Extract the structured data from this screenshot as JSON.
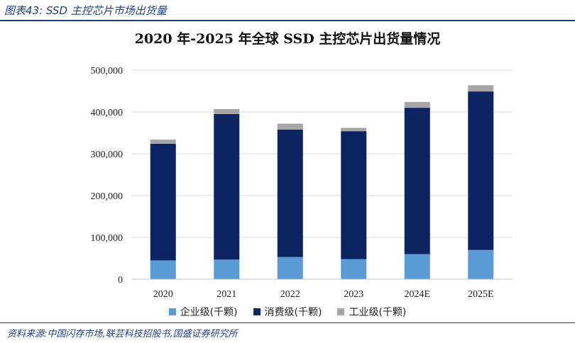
{
  "figure_label": "图表43:  SSD 主控芯片市场出货量",
  "source_note": "资料来源:中国闪存市场,联芸科技招股书,国盛证券研究所",
  "colors": {
    "accent": "#1f3c88",
    "enterprise": "#5b9bd5",
    "consumer": "#0c2461",
    "industrial": "#a6a6a6",
    "grid": "#d9d9d9"
  },
  "chart_data": {
    "type": "bar",
    "stacked": true,
    "title": "2020 年-2025 年全球 SSD 主控芯片出货量情况",
    "xlabel": "",
    "ylabel": "",
    "categories": [
      "2020",
      "2021",
      "2022",
      "2023",
      "2024E",
      "2025E"
    ],
    "ylim": [
      0,
      500000
    ],
    "yticks": [
      0,
      100000,
      200000,
      300000,
      400000,
      500000
    ],
    "ytick_labels": [
      "0",
      "100,000",
      "200,000",
      "300,000",
      "400,000",
      "500,000"
    ],
    "grid": true,
    "legend_position": "bottom",
    "series": [
      {
        "name": "企业级(千颗)",
        "color": "#5b9bd5",
        "values": [
          45000,
          47000,
          53000,
          48000,
          60000,
          70000
        ]
      },
      {
        "name": "消费级(千颗)",
        "color": "#0c2461",
        "values": [
          279000,
          348000,
          305000,
          306000,
          350000,
          379000
        ]
      },
      {
        "name": "工业级(千颗)",
        "color": "#a6a6a6",
        "values": [
          10000,
          12000,
          14000,
          8000,
          14000,
          15000
        ]
      }
    ]
  }
}
